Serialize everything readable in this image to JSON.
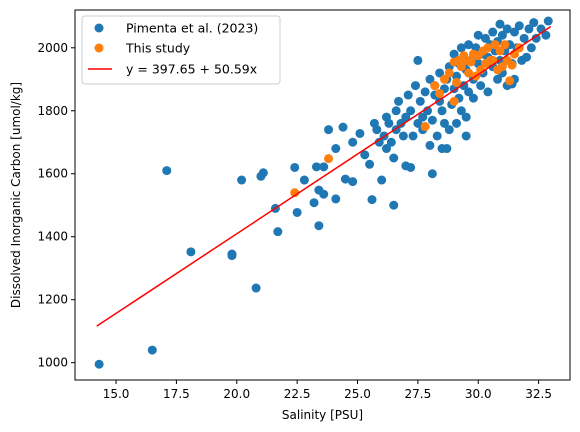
{
  "chart_data": {
    "type": "scatter",
    "xlabel": "Salinity [PSU]",
    "ylabel": "Dissolved Inorganic Carbon [umol/kg]",
    "xlim": [
      13.3,
      33.8
    ],
    "ylim": [
      945,
      2120
    ],
    "x_ticks": [
      15.0,
      17.5,
      20.0,
      22.5,
      25.0,
      27.5,
      30.0,
      32.5
    ],
    "x_tick_labels": [
      "15.0",
      "17.5",
      "20.0",
      "22.5",
      "25.0",
      "27.5",
      "30.0",
      "32.5"
    ],
    "y_ticks": [
      1000,
      1200,
      1400,
      1600,
      1800,
      2000
    ],
    "y_tick_labels": [
      "1000",
      "1200",
      "1400",
      "1600",
      "1800",
      "2000"
    ],
    "grid": false,
    "legend_position": "top-left",
    "series": [
      {
        "name": "Pimenta et al. (2023)",
        "kind": "scatter",
        "color": "#1f77b4",
        "points": [
          [
            14.3,
            995
          ],
          [
            16.5,
            1040
          ],
          [
            17.1,
            1610
          ],
          [
            18.1,
            1352
          ],
          [
            19.8,
            1345
          ],
          [
            19.8,
            1340
          ],
          [
            20.8,
            1237
          ],
          [
            20.2,
            1580
          ],
          [
            21.0,
            1592
          ],
          [
            21.1,
            1603
          ],
          [
            21.6,
            1490
          ],
          [
            21.7,
            1416
          ],
          [
            22.4,
            1620
          ],
          [
            22.5,
            1477
          ],
          [
            22.8,
            1580
          ],
          [
            23.2,
            1508
          ],
          [
            23.3,
            1622
          ],
          [
            23.4,
            1548
          ],
          [
            23.4,
            1435
          ],
          [
            23.6,
            1622
          ],
          [
            23.6,
            1535
          ],
          [
            23.8,
            1740
          ],
          [
            24.1,
            1520
          ],
          [
            24.1,
            1680
          ],
          [
            24.4,
            1748
          ],
          [
            24.5,
            1583
          ],
          [
            24.8,
            1575
          ],
          [
            24.8,
            1700
          ],
          [
            25.1,
            1728
          ],
          [
            25.3,
            1660
          ],
          [
            25.6,
            1518
          ],
          [
            25.5,
            1630
          ],
          [
            25.7,
            1760
          ],
          [
            25.8,
            1740
          ],
          [
            25.9,
            1700
          ],
          [
            26.0,
            1580
          ],
          [
            26.1,
            1720
          ],
          [
            26.2,
            1680
          ],
          [
            26.2,
            1780
          ],
          [
            26.3,
            1760
          ],
          [
            26.4,
            1700
          ],
          [
            26.5,
            1500
          ],
          [
            26.5,
            1650
          ],
          [
            26.6,
            1740
          ],
          [
            26.6,
            1800
          ],
          [
            26.7,
            1830
          ],
          [
            26.8,
            1760
          ],
          [
            26.9,
            1720
          ],
          [
            27.0,
            1625
          ],
          [
            27.0,
            1780
          ],
          [
            27.1,
            1850
          ],
          [
            27.2,
            1800
          ],
          [
            27.2,
            1620
          ],
          [
            27.3,
            1720
          ],
          [
            27.4,
            1880
          ],
          [
            27.5,
            1960
          ],
          [
            27.5,
            1760
          ],
          [
            27.6,
            1830
          ],
          [
            27.7,
            1780
          ],
          [
            27.7,
            1740
          ],
          [
            27.8,
            1860
          ],
          [
            27.9,
            1800
          ],
          [
            28.0,
            1900
          ],
          [
            28.0,
            1690
          ],
          [
            28.1,
            1600
          ],
          [
            28.1,
            1770
          ],
          [
            28.2,
            1850
          ],
          [
            28.2,
            1880
          ],
          [
            28.3,
            1720
          ],
          [
            28.4,
            1830
          ],
          [
            28.4,
            1920
          ],
          [
            28.5,
            1680
          ],
          [
            28.5,
            1800
          ],
          [
            28.6,
            1760
          ],
          [
            28.6,
            1870
          ],
          [
            28.7,
            1900
          ],
          [
            28.8,
            1940
          ],
          [
            28.8,
            1740
          ],
          [
            28.9,
            1820
          ],
          [
            29.0,
            1980
          ],
          [
            29.0,
            1870
          ],
          [
            29.1,
            1760
          ],
          [
            29.1,
            1910
          ],
          [
            29.2,
            1840
          ],
          [
            29.2,
            1950
          ],
          [
            29.3,
            2000
          ],
          [
            29.3,
            1800
          ],
          [
            29.4,
            1880
          ],
          [
            29.4,
            1950
          ],
          [
            29.5,
            1930
          ],
          [
            29.5,
            1780
          ],
          [
            29.6,
            2010
          ],
          [
            29.6,
            1860
          ],
          [
            29.7,
            1960
          ],
          [
            29.8,
            1900
          ],
          [
            29.8,
            1840
          ],
          [
            29.9,
            2000
          ],
          [
            30.0,
            1950
          ],
          [
            30.0,
            2040
          ],
          [
            30.1,
            1880
          ],
          [
            30.2,
            1980
          ],
          [
            30.2,
            1920
          ],
          [
            30.3,
            2030
          ],
          [
            30.4,
            1970
          ],
          [
            30.4,
            1860
          ],
          [
            30.5,
            2010
          ],
          [
            30.6,
            1940
          ],
          [
            30.6,
            2050
          ],
          [
            30.7,
            1990
          ],
          [
            30.8,
            1900
          ],
          [
            30.8,
            2020
          ],
          [
            30.9,
            1960
          ],
          [
            31.0,
            2040
          ],
          [
            31.0,
            1920
          ],
          [
            31.1,
            1990
          ],
          [
            31.2,
            2060
          ],
          [
            31.2,
            1880
          ],
          [
            31.3,
            2010
          ],
          [
            31.4,
            1950
          ],
          [
            31.5,
            2050
          ],
          [
            31.5,
            1900
          ],
          [
            31.6,
            2000
          ],
          [
            31.7,
            2070
          ],
          [
            31.8,
            1960
          ],
          [
            31.9,
            2030
          ],
          [
            32.0,
            1970
          ],
          [
            32.1,
            2060
          ],
          [
            32.2,
            2000
          ],
          [
            32.3,
            2080
          ],
          [
            32.4,
            2030
          ],
          [
            32.6,
            2060
          ],
          [
            32.8,
            2040
          ],
          [
            32.9,
            2085
          ],
          [
            30.9,
            2075
          ],
          [
            31.4,
            1885
          ],
          [
            29.5,
            1720
          ],
          [
            28.7,
            1680
          ]
        ]
      },
      {
        "name": "This study",
        "kind": "scatter",
        "color": "#ff7f0e",
        "points": [
          [
            22.4,
            1540
          ],
          [
            23.8,
            1648
          ],
          [
            27.8,
            1750
          ],
          [
            28.2,
            1880
          ],
          [
            28.4,
            1855
          ],
          [
            28.6,
            1900
          ],
          [
            28.8,
            1920
          ],
          [
            29.0,
            1955
          ],
          [
            29.1,
            1890
          ],
          [
            29.2,
            1960
          ],
          [
            29.3,
            1940
          ],
          [
            29.4,
            1975
          ],
          [
            29.5,
            1960
          ],
          [
            29.6,
            1920
          ],
          [
            29.7,
            1955
          ],
          [
            29.8,
            1980
          ],
          [
            29.9,
            1910
          ],
          [
            30.0,
            1975
          ],
          [
            30.1,
            1930
          ],
          [
            30.2,
            1990
          ],
          [
            30.3,
            1950
          ],
          [
            30.4,
            2000
          ],
          [
            30.6,
            1960
          ],
          [
            30.7,
            2010
          ],
          [
            30.8,
            1930
          ],
          [
            30.9,
            1990
          ],
          [
            31.0,
            1940
          ],
          [
            31.1,
            2010
          ],
          [
            31.2,
            1960
          ],
          [
            31.3,
            1895
          ],
          [
            31.4,
            1945
          ],
          [
            31.5,
            1980
          ],
          [
            31.7,
            2000
          ],
          [
            29.0,
            1830
          ],
          [
            30.5,
            1960
          ]
        ]
      },
      {
        "name": "y = 397.65 + 50.59x",
        "kind": "line",
        "color": "#ff0000",
        "x": [
          14.2,
          33.0
        ],
        "intercept": 397.65,
        "slope": 50.59
      }
    ]
  }
}
